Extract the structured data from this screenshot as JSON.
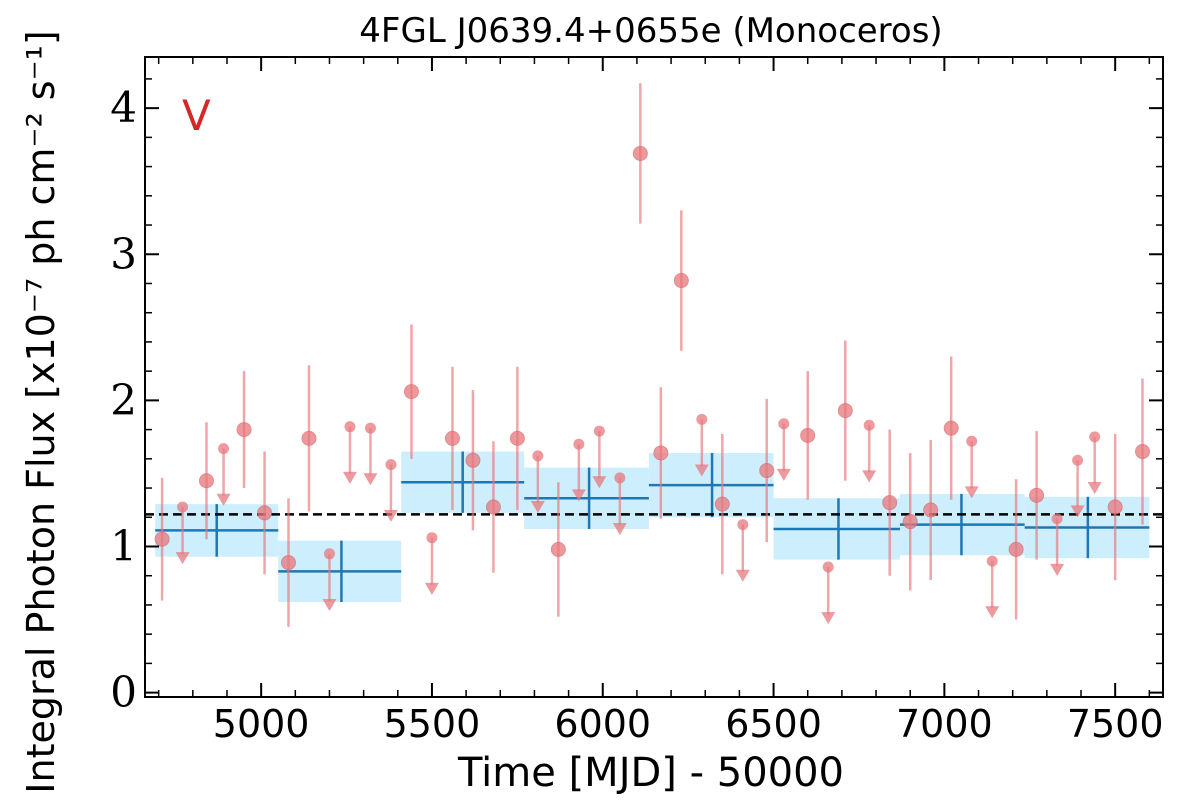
{
  "chart_data": {
    "type": "scatter",
    "title": "4FGL J0639.4+0655e (Monoceros)",
    "xlabel": "Time [MJD] - 50000",
    "ylabel": "Integral Photon Flux [x10⁻⁷ ph cm⁻² s⁻¹]",
    "xlim": [
      4660,
      7640
    ],
    "ylim": [
      -0.03,
      4.35
    ],
    "x_ticks": [
      "5000",
      "5500",
      "6000",
      "6500",
      "7000",
      "7500"
    ],
    "y_ticks": [
      "0",
      "1",
      "2",
      "3",
      "4"
    ],
    "panel_label": "V",
    "mean_flux": 1.22,
    "colors": {
      "points": "#e8777c",
      "bins": "#1f77b4",
      "bin_band": "#cdeefc",
      "panel_label": "#d62728",
      "mean_line": "#000000"
    },
    "detections": [
      {
        "x": 4710,
        "y": 1.05,
        "err": 0.42
      },
      {
        "x": 4840,
        "y": 1.45,
        "err": 0.4
      },
      {
        "x": 4950,
        "y": 1.8,
        "err": 0.4
      },
      {
        "x": 5010,
        "y": 1.23,
        "err": 0.42
      },
      {
        "x": 5080,
        "y": 0.89,
        "err": 0.44
      },
      {
        "x": 5140,
        "y": 1.74,
        "err": 0.5
      },
      {
        "x": 5440,
        "y": 2.06,
        "err": 0.46
      },
      {
        "x": 5560,
        "y": 1.74,
        "err": 0.49
      },
      {
        "x": 5620,
        "y": 1.59,
        "err": 0.48
      },
      {
        "x": 5680,
        "y": 1.27,
        "err": 0.45
      },
      {
        "x": 5750,
        "y": 1.74,
        "err": 0.49
      },
      {
        "x": 5870,
        "y": 0.98,
        "err": 0.46
      },
      {
        "x": 6110,
        "y": 3.69,
        "err": 0.48
      },
      {
        "x": 6170,
        "y": 1.64,
        "err": 0.45
      },
      {
        "x": 6230,
        "y": 2.82,
        "err": 0.48
      },
      {
        "x": 6350,
        "y": 1.29,
        "err": 0.48
      },
      {
        "x": 6480,
        "y": 1.52,
        "err": 0.49
      },
      {
        "x": 6600,
        "y": 1.76,
        "err": 0.44
      },
      {
        "x": 6710,
        "y": 1.93,
        "err": 0.48
      },
      {
        "x": 6840,
        "y": 1.3,
        "err": 0.5
      },
      {
        "x": 6900,
        "y": 1.17,
        "err": 0.47
      },
      {
        "x": 6960,
        "y": 1.25,
        "err": 0.48
      },
      {
        "x": 7020,
        "y": 1.81,
        "err": 0.49
      },
      {
        "x": 7210,
        "y": 0.98,
        "err": 0.48
      },
      {
        "x": 7270,
        "y": 1.35,
        "err": 0.44
      },
      {
        "x": 7500,
        "y": 1.27,
        "err": 0.5
      },
      {
        "x": 7580,
        "y": 1.65,
        "err": 0.5
      }
    ],
    "upper_limits": [
      {
        "x": 4770,
        "y": 1.27
      },
      {
        "x": 4890,
        "y": 1.67
      },
      {
        "x": 5200,
        "y": 0.95
      },
      {
        "x": 5260,
        "y": 1.82
      },
      {
        "x": 5320,
        "y": 1.81
      },
      {
        "x": 5380,
        "y": 1.56
      },
      {
        "x": 5500,
        "y": 1.06
      },
      {
        "x": 5810,
        "y": 1.62
      },
      {
        "x": 5930,
        "y": 1.7
      },
      {
        "x": 5990,
        "y": 1.79
      },
      {
        "x": 6050,
        "y": 1.47
      },
      {
        "x": 6290,
        "y": 1.87
      },
      {
        "x": 6410,
        "y": 1.15
      },
      {
        "x": 6530,
        "y": 1.84
      },
      {
        "x": 6660,
        "y": 0.86
      },
      {
        "x": 6780,
        "y": 1.83
      },
      {
        "x": 7080,
        "y": 1.72
      },
      {
        "x": 7140,
        "y": 0.9
      },
      {
        "x": 7330,
        "y": 1.19
      },
      {
        "x": 7390,
        "y": 1.59
      },
      {
        "x": 7440,
        "y": 1.75
      }
    ],
    "bins": [
      {
        "x0": 4690,
        "x1": 5050,
        "y": 1.11,
        "xc": 4870,
        "err": 0.18
      },
      {
        "x0": 5050,
        "x1": 5410,
        "y": 0.83,
        "xc": 5235,
        "err": 0.21
      },
      {
        "x0": 5410,
        "x1": 5770,
        "y": 1.44,
        "xc": 5590,
        "err": 0.21
      },
      {
        "x0": 5770,
        "x1": 6135,
        "y": 1.33,
        "xc": 5960,
        "err": 0.21
      },
      {
        "x0": 6135,
        "x1": 6500,
        "y": 1.42,
        "xc": 6320,
        "err": 0.22
      },
      {
        "x0": 6500,
        "x1": 6870,
        "y": 1.12,
        "xc": 6690,
        "err": 0.21
      },
      {
        "x0": 6870,
        "x1": 7235,
        "y": 1.15,
        "xc": 7050,
        "err": 0.21
      },
      {
        "x0": 7235,
        "x1": 7600,
        "y": 1.13,
        "xc": 7420,
        "err": 0.21
      }
    ]
  }
}
